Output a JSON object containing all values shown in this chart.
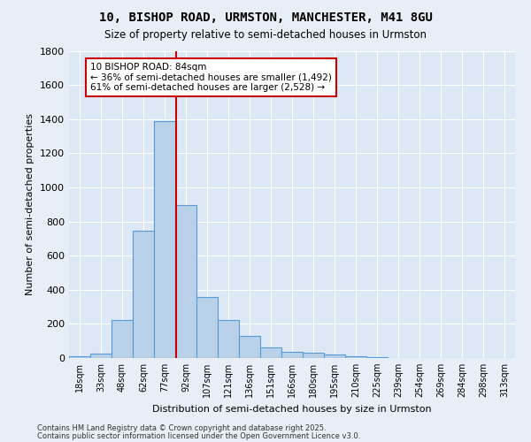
{
  "title_line1": "10, BISHOP ROAD, URMSTON, MANCHESTER, M41 8GU",
  "title_line2": "Size of property relative to semi-detached houses in Urmston",
  "xlabel": "Distribution of semi-detached houses by size in Urmston",
  "ylabel": "Number of semi-detached properties",
  "bin_labels": [
    "18sqm",
    "33sqm",
    "48sqm",
    "62sqm",
    "77sqm",
    "92sqm",
    "107sqm",
    "121sqm",
    "136sqm",
    "151sqm",
    "166sqm",
    "180sqm",
    "195sqm",
    "210sqm",
    "225sqm",
    "239sqm",
    "254sqm",
    "269sqm",
    "284sqm",
    "298sqm",
    "313sqm"
  ],
  "bar_values": [
    10,
    25,
    225,
    745,
    1390,
    895,
    360,
    225,
    130,
    60,
    35,
    30,
    20,
    10,
    5,
    2,
    2,
    1,
    1,
    0,
    0
  ],
  "bar_color": "#b8d0e8",
  "bar_edge_color": "#5b9bd5",
  "vline_x_index": 4.55,
  "vline_color": "#cc0000",
  "annotation_title": "10 BISHOP ROAD: 84sqm",
  "annotation_line1": "← 36% of semi-detached houses are smaller (1,492)",
  "annotation_line2": "61% of semi-detached houses are larger (2,528) →",
  "annotation_box_edgecolor": "#cc0000",
  "ylim": [
    0,
    1800
  ],
  "yticks": [
    0,
    200,
    400,
    600,
    800,
    1000,
    1200,
    1400,
    1600,
    1800
  ],
  "footnote1": "Contains HM Land Registry data © Crown copyright and database right 2025.",
  "footnote2": "Contains public sector information licensed under the Open Government Licence v3.0.",
  "bg_color": "#e8eef5",
  "plot_bg_color": "#dce8f5"
}
